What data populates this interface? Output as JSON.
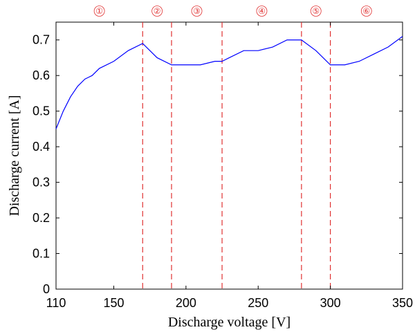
{
  "chart_data": {
    "type": "line",
    "xlabel": "Discharge voltage [V]",
    "ylabel": "Discharge current [A]",
    "xlim": [
      110,
      350
    ],
    "ylim": [
      0,
      0.75
    ],
    "xticks": [
      110,
      150,
      200,
      250,
      300,
      350
    ],
    "yticks": [
      0,
      0.1,
      0.2,
      0.3,
      0.4,
      0.5,
      0.6,
      0.7
    ],
    "grid": false,
    "series": [
      {
        "color": "#0000ff",
        "x": [
          110,
          115,
          120,
          125,
          130,
          135,
          140,
          150,
          160,
          170,
          180,
          190,
          200,
          210,
          220,
          225,
          230,
          240,
          250,
          260,
          270,
          280,
          290,
          300,
          310,
          320,
          330,
          340,
          350
        ],
        "y": [
          0.45,
          0.5,
          0.54,
          0.57,
          0.59,
          0.6,
          0.62,
          0.64,
          0.67,
          0.69,
          0.65,
          0.63,
          0.63,
          0.63,
          0.64,
          0.64,
          0.65,
          0.67,
          0.67,
          0.68,
          0.7,
          0.7,
          0.67,
          0.63,
          0.63,
          0.64,
          0.66,
          0.68,
          0.71
        ]
      }
    ],
    "boundaries": {
      "x": [
        170,
        190,
        225,
        280,
        300
      ],
      "color": "#e03030",
      "style": "dashed"
    },
    "regions": [
      {
        "label": "①",
        "x": 140
      },
      {
        "label": "②",
        "x": 180
      },
      {
        "label": "③",
        "x": 207.5
      },
      {
        "label": "④",
        "x": 252.5
      },
      {
        "label": "⑤",
        "x": 290
      },
      {
        "label": "⑥",
        "x": 325
      }
    ]
  }
}
